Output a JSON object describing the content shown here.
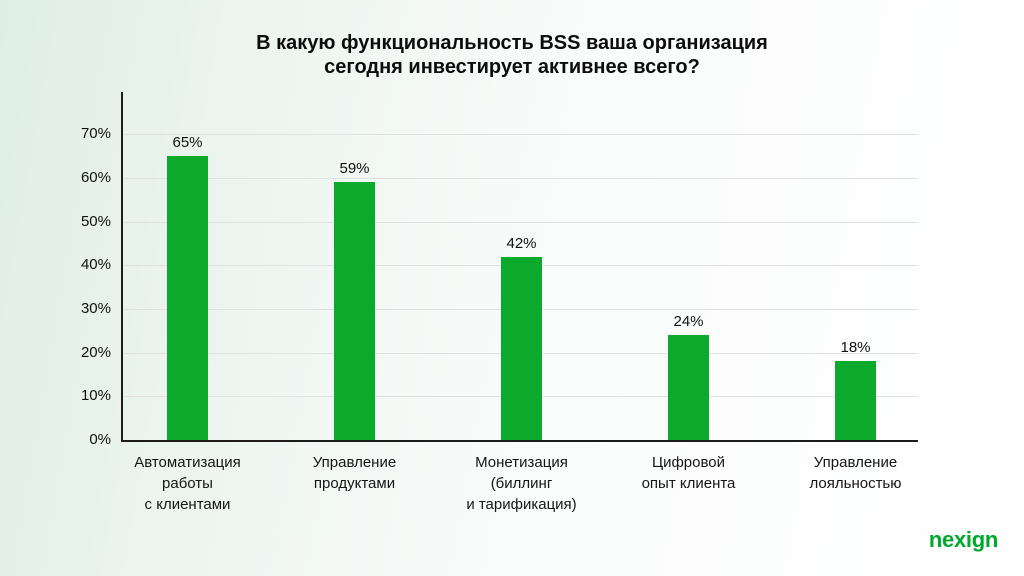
{
  "title": {
    "lines": [
      "В какую функциональность BSS ваша организация",
      "сегодня инвестирует активнее всего?"
    ]
  },
  "chart_data": {
    "type": "bar",
    "title": "В какую функциональность BSS ваша организация сегодня инвестирует активнее всего?",
    "categories": [
      "Автоматизация\nработы\nс клиентами",
      "Управление\nпродуктами",
      "Монетизация\n(биллинг\nи тарификация)",
      "Цифровой\nопыт клиента",
      "Управление\nлояльностью"
    ],
    "values": [
      65,
      59,
      42,
      24,
      18
    ],
    "value_labels": [
      "65%",
      "59%",
      "42%",
      "24%",
      "18%"
    ],
    "yticks": [
      "0%",
      "10%",
      "20%",
      "30%",
      "40%",
      "50%",
      "60%",
      "70%"
    ],
    "ylim": [
      0,
      70
    ],
    "tick_step": 10,
    "grid": true,
    "legend": "none",
    "xlabel": "",
    "ylabel": ""
  },
  "branding": {
    "logo_text": "nexign"
  },
  "colors": {
    "bar_green": "#0caa2c",
    "logo_green": "#00a82e",
    "grid_line": "#e1e1e1",
    "axis": "#1c1c1c",
    "text": "#111111",
    "bg_left": "#deeee5",
    "bg_right": "#ffffff"
  }
}
